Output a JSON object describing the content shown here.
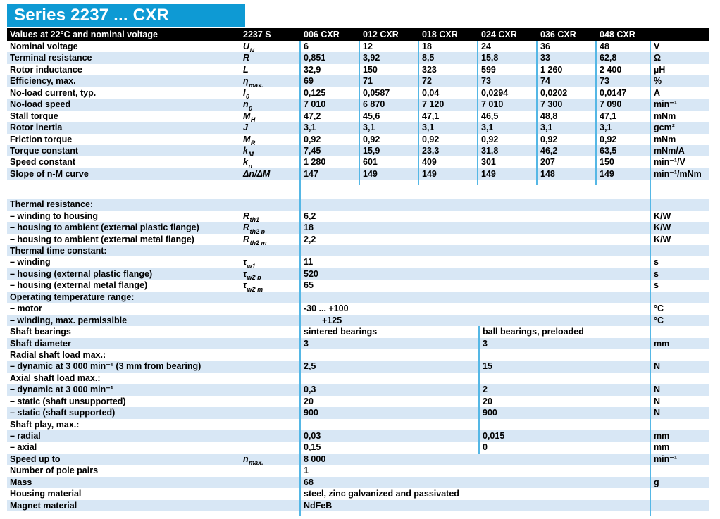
{
  "title": "Series 2237 ... CXR",
  "colors": {
    "accent": "#0E9AD4",
    "stripe": "#D8E7F5",
    "divider": "#55B7E5",
    "bar": "#000000"
  },
  "header": {
    "label": "Values at 22°C and nominal voltage",
    "series": "2237 S",
    "columns": [
      "006 CXR",
      "012 CXR",
      "018 CXR",
      "024 CXR",
      "036 CXR",
      "048 CXR"
    ]
  },
  "electrical": [
    {
      "label": "Nominal voltage",
      "sym": "U",
      "sub": "N",
      "values": [
        "6",
        "12",
        "18",
        "24",
        "36",
        "48"
      ],
      "unit": "V"
    },
    {
      "label": "Terminal resistance",
      "sym": "R",
      "sub": "",
      "values": [
        "0,851",
        "3,92",
        "8,5",
        "15,8",
        "33",
        "62,8"
      ],
      "unit": "Ω"
    },
    {
      "label": "Rotor inductance",
      "sym": "L",
      "sub": "",
      "values": [
        "32,9",
        "150",
        "323",
        "599",
        "1 260",
        "2 400"
      ],
      "unit": "µH"
    },
    {
      "label": "Efficiency, max.",
      "sym": "η",
      "sub": "max.",
      "values": [
        "69",
        "71",
        "72",
        "73",
        "74",
        "73"
      ],
      "unit": "%"
    },
    {
      "label": "No-load current, typ.",
      "sym": "I",
      "sub": "0",
      "values": [
        "0,125",
        "0,0587",
        "0,04",
        "0,0294",
        "0,0202",
        "0,0147"
      ],
      "unit": "A"
    },
    {
      "label": "No-load speed",
      "sym": "n",
      "sub": "0",
      "values": [
        "7 010",
        "6 870",
        "7 120",
        "7 010",
        "7 300",
        "7 090"
      ],
      "unit": "min⁻¹"
    },
    {
      "label": "Stall torque",
      "sym": "M",
      "sub": "H",
      "values": [
        "47,2",
        "45,6",
        "47,1",
        "46,5",
        "48,8",
        "47,1"
      ],
      "unit": "mNm"
    },
    {
      "label": "Rotor inertia",
      "sym": "J",
      "sub": "",
      "values": [
        "3,1",
        "3,1",
        "3,1",
        "3,1",
        "3,1",
        "3,1"
      ],
      "unit": "gcm²"
    },
    {
      "label": "Friction torque",
      "sym": "M",
      "sub": "R",
      "values": [
        "0,92",
        "0,92",
        "0,92",
        "0,92",
        "0,92",
        "0,92"
      ],
      "unit": "mNm"
    },
    {
      "label": "Torque constant",
      "sym": "k",
      "sub": "M",
      "values": [
        "7,45",
        "15,9",
        "23,3",
        "31,8",
        "46,2",
        "63,5"
      ],
      "unit": "mNm/A"
    },
    {
      "label": "Speed constant",
      "sym": "k",
      "sub": "n",
      "values": [
        "1 280",
        "601",
        "409",
        "301",
        "207",
        "150"
      ],
      "unit": "min⁻¹/V"
    },
    {
      "label": "Slope of n-M curve",
      "sym": "Δn/ΔM",
      "sub": "",
      "values": [
        "147",
        "149",
        "149",
        "149",
        "148",
        "149"
      ],
      "unit": "min⁻¹/mNm"
    }
  ],
  "properties": [
    {
      "label": "Thermal resistance:",
      "type": "head"
    },
    {
      "label": "– winding to housing",
      "sym": "R",
      "sub": "th1",
      "value": "6,2",
      "unit": "K/W",
      "type": "single"
    },
    {
      "label": "– housing to ambient (external plastic flange)",
      "sym": "R",
      "sub": "th2 p",
      "value": "18",
      "unit": "K/W",
      "type": "single"
    },
    {
      "label": "– housing to ambient (external metal flange)",
      "sym": "R",
      "sub": "th2 m",
      "value": "2,2",
      "unit": "K/W",
      "type": "single"
    },
    {
      "label": "Thermal time constant:",
      "type": "head"
    },
    {
      "label": "– winding",
      "sym": "τ",
      "sub": "w1",
      "value": "11",
      "unit": "s",
      "type": "single"
    },
    {
      "label": "– housing (external plastic flange)",
      "sym": "τ",
      "sub": "w2 p",
      "value": "520",
      "unit": "s",
      "type": "single"
    },
    {
      "label": "– housing (external metal flange)",
      "sym": "τ",
      "sub": "w2 m",
      "value": "65",
      "unit": "s",
      "type": "single"
    },
    {
      "label": "Operating temperature range:",
      "type": "head"
    },
    {
      "label": "– motor",
      "value": "-30 ... +100",
      "unit": "°C",
      "type": "single"
    },
    {
      "label": "– winding, max. permissible",
      "value": "+125",
      "unit": "°C",
      "type": "single",
      "indent": true
    },
    {
      "label": "Shaft bearings",
      "v1": "sintered bearings",
      "v2": "ball bearings, preloaded",
      "unit": "",
      "type": "dual"
    },
    {
      "label": "Shaft diameter",
      "v1": "3",
      "v2": "3",
      "unit": "mm",
      "type": "dual"
    },
    {
      "label": "Radial shaft load max.:",
      "v1": "",
      "v2": "",
      "unit": "",
      "type": "dual"
    },
    {
      "label": "– dynamic at 3 000 min⁻¹ (3 mm from bearing)",
      "v1": "2,5",
      "v2": "15",
      "unit": "N",
      "type": "dual"
    },
    {
      "label": "Axial shaft load max.:",
      "v1": "",
      "v2": "",
      "unit": "",
      "type": "dual"
    },
    {
      "label": "– dynamic at 3 000 min⁻¹",
      "v1": "0,3",
      "v2": "2",
      "unit": "N",
      "type": "dual"
    },
    {
      "label": "– static (shaft unsupported)",
      "v1": "20",
      "v2": "20",
      "unit": "N",
      "type": "dual"
    },
    {
      "label": "– static (shaft supported)",
      "v1": "900",
      "v2": "900",
      "unit": "N",
      "type": "dual"
    },
    {
      "label": "Shaft play, max.:",
      "v1": "",
      "v2": "",
      "unit": "",
      "type": "dual"
    },
    {
      "label": "– radial",
      "v1": "0,03",
      "v2": "0,015",
      "unit": "mm",
      "type": "dual"
    },
    {
      "label": "– axial",
      "v1": "0,15",
      "v2": "0",
      "unit": "mm",
      "type": "dual"
    },
    {
      "label": "Speed up to",
      "sym": "n",
      "sub": "max.",
      "value": "8 000",
      "unit": "min⁻¹",
      "type": "single"
    },
    {
      "label": "Number of pole pairs",
      "value": "1",
      "unit": "",
      "type": "single"
    },
    {
      "label": "Mass",
      "value": "68",
      "unit": "g",
      "type": "single"
    },
    {
      "label": "Housing material",
      "value": "steel, zinc galvanized and passivated",
      "unit": "",
      "type": "single"
    },
    {
      "label": "Magnet material",
      "value": "NdFeB",
      "unit": "",
      "type": "single"
    }
  ]
}
